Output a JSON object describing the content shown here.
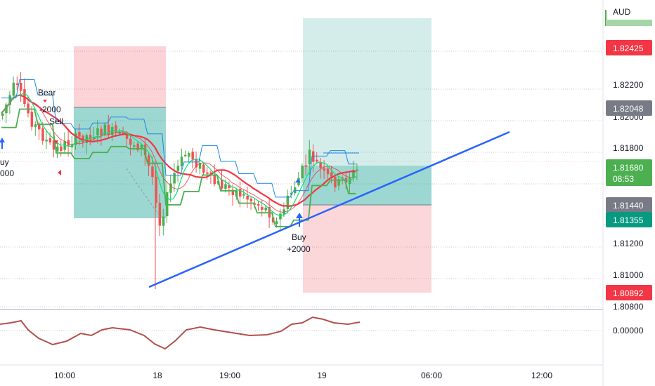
{
  "currency_label": "AUD",
  "colors": {
    "up": "#26a69a",
    "down": "#ef5350",
    "candle_green": "#4caf50",
    "candle_red": "#ef5350",
    "trendline": "#2962ff",
    "ema_red": "#f23645",
    "ema_green": "#00e676",
    "band_blue": "#1e88e5",
    "oscillator": "#b2504b",
    "profit_zone": "rgba(38,166,154,0.2)",
    "loss_zone": "rgba(242,54,69,0.2)",
    "grid": "#e0e3eb"
  },
  "price_axis": {
    "ticks": [
      "1.82200",
      "1.82000",
      "1.81800",
      "1.81200",
      "1.81000",
      "1.80800"
    ],
    "osc_tick": "0.00000"
  },
  "price_badges": [
    {
      "label": "1.82425",
      "color": "#f23645"
    },
    {
      "label": "1.82048",
      "color": "#787b86"
    },
    {
      "label": "1.81680",
      "sub": "08:53",
      "color": "#4caf50"
    },
    {
      "label": "1.81440",
      "color": "#787b86"
    },
    {
      "label": "1.81355",
      "color": "#089981"
    },
    {
      "label": "1.80892",
      "color": "#f23645"
    }
  ],
  "time_axis": {
    "ticks": [
      "10:00",
      "18",
      "19:00",
      "19",
      "06:00",
      "12:00"
    ]
  },
  "annotations": [
    {
      "text": "Bear"
    },
    {
      "text": "-2000"
    },
    {
      "text": "Sell"
    },
    {
      "text": "uy"
    },
    {
      "text": "000"
    },
    {
      "text": "Buy"
    },
    {
      "text": "+2000"
    }
  ],
  "chart_data": {
    "type": "candlestick",
    "symbol_currency": "AUD",
    "last_price": 1.8168,
    "countdown": "08:53",
    "ylim": [
      1.8075,
      1.8252
    ],
    "trendline": {
      "from": [
        1.8094
      ],
      "to": [
        1.8189
      ],
      "label": ""
    },
    "positions": [
      {
        "side": "short",
        "entry": 1.82048,
        "target": 1.8144,
        "stop": 1.82425
      },
      {
        "side": "long",
        "entry": 1.8168,
        "target": 1.8249,
        "stop": 1.80892
      }
    ],
    "signals": [
      {
        "type": "sell",
        "label": "Sell",
        "size": "-2000"
      },
      {
        "type": "buy",
        "label": "Buy",
        "size": "+2000"
      }
    ],
    "oscillator": {
      "zero_label": "0.00000"
    }
  }
}
